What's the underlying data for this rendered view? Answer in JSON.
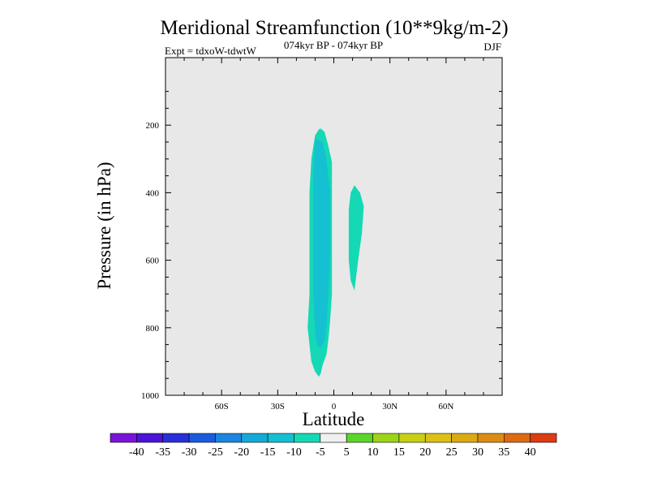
{
  "chart_data": {
    "type": "contour",
    "title": "Meridional Streamfunction (10**9kg/m-2)",
    "subtitle_left": "Expt = tdxoW-tdwtW",
    "subtitle_center": "074kyr BP - 074kyr BP",
    "subtitle_right": "DJF",
    "xlabel": "Latitude",
    "ylabel": "Pressure (in hPa)",
    "xlim": [
      -90,
      90
    ],
    "ylim": [
      0,
      1000
    ],
    "y_reversed": true,
    "x_ticks": [
      {
        "value": -60,
        "label": "60S"
      },
      {
        "value": -30,
        "label": "30S"
      },
      {
        "value": 0,
        "label": "0"
      },
      {
        "value": 30,
        "label": "30N"
      },
      {
        "value": 60,
        "label": "60N"
      }
    ],
    "y_ticks": [
      {
        "value": 200,
        "label": "200"
      },
      {
        "value": 400,
        "label": "400"
      },
      {
        "value": 600,
        "label": "600"
      },
      {
        "value": 800,
        "label": "800"
      },
      {
        "value": 1000,
        "label": "1000"
      }
    ],
    "background_color": "#e8e8e8",
    "regions": [
      {
        "level_range": [
          -10,
          -5
        ],
        "color": "#14d9b4",
        "polygon": [
          [
            -7,
            210
          ],
          [
            -5,
            220
          ],
          [
            -3,
            260
          ],
          [
            -1,
            310
          ],
          [
            -1,
            700
          ],
          [
            -2,
            780
          ],
          [
            -3,
            840
          ],
          [
            -4,
            880
          ],
          [
            -6,
            910
          ],
          [
            -7,
            935
          ],
          [
            -8,
            945
          ],
          [
            -10,
            930
          ],
          [
            -12,
            900
          ],
          [
            -13,
            850
          ],
          [
            -14,
            800
          ],
          [
            -13,
            700
          ],
          [
            -13,
            600
          ],
          [
            -13,
            400
          ],
          [
            -12,
            300
          ],
          [
            -10,
            230
          ],
          [
            -8,
            212
          ]
        ]
      },
      {
        "level_range": [
          -15,
          -10
        ],
        "color": "#14c0d2",
        "polygon": [
          [
            -10,
            240
          ],
          [
            -6,
            250
          ],
          [
            -4,
            300
          ],
          [
            -2,
            400
          ],
          [
            -2,
            600
          ],
          [
            -3,
            700
          ],
          [
            -4,
            800
          ],
          [
            -5,
            840
          ],
          [
            -7,
            860
          ],
          [
            -9,
            850
          ],
          [
            -10,
            800
          ],
          [
            -11,
            700
          ],
          [
            -11,
            500
          ],
          [
            -11,
            350
          ]
        ]
      },
      {
        "level_range": [
          -10,
          -5
        ],
        "color": "#14d9b4",
        "polygon": [
          [
            11,
            378
          ],
          [
            14,
            400
          ],
          [
            16,
            440
          ],
          [
            15,
            520
          ],
          [
            13,
            600
          ],
          [
            11,
            690
          ],
          [
            9,
            660
          ],
          [
            8,
            600
          ],
          [
            8,
            520
          ],
          [
            8,
            450
          ],
          [
            9,
            400
          ]
        ]
      }
    ],
    "colorbar": {
      "labels": [
        "-40",
        "-35",
        "-30",
        "-25",
        "-20",
        "-15",
        "-10",
        "-5",
        "5",
        "10",
        "15",
        "20",
        "25",
        "30",
        "35",
        "40"
      ],
      "colors": [
        "#7a14d8",
        "#4b14d6",
        "#2a2fd9",
        "#1a5cdc",
        "#1a86dd",
        "#14aad7",
        "#14c0d2",
        "#14d9b4",
        "#f0f0f0",
        "#5ad62a",
        "#9cd417",
        "#c9d014",
        "#dcc014",
        "#dcaa14",
        "#dc8c14",
        "#dc6a14",
        "#dc3c14"
      ]
    }
  }
}
